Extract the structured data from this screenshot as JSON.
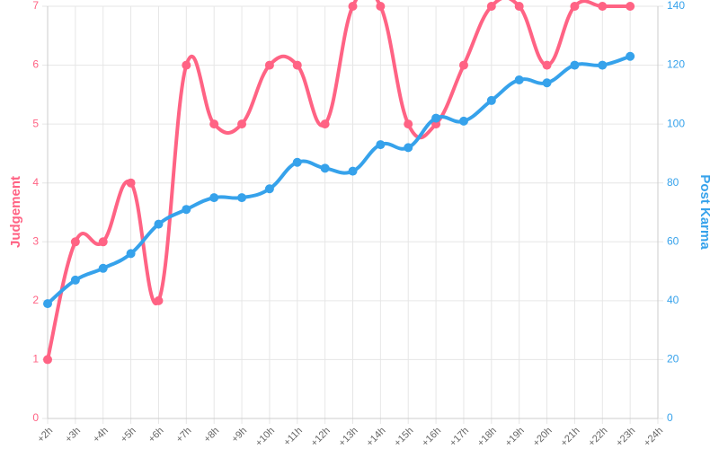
{
  "chart_data": {
    "type": "line",
    "ylabel": "Judgement",
    "y2label": "Post Karma",
    "categories": [
      "+2h",
      "+3h",
      "+4h",
      "+5h",
      "+6h",
      "+7h",
      "+8h",
      "+9h",
      "+10h",
      "+11h",
      "+12h",
      "+13h",
      "+14h",
      "+15h",
      "+16h",
      "+17h",
      "+18h",
      "+19h",
      "+20h",
      "+21h",
      "+22h",
      "+23h",
      "+24h"
    ],
    "series": [
      {
        "color": "#ff6384",
        "values": [
          1,
          3,
          3,
          4,
          2,
          6,
          5,
          5,
          6,
          6,
          5,
          7,
          7,
          5,
          5,
          6,
          7,
          7,
          6,
          7,
          7,
          7,
          null
        ]
      },
      {
        "color": "#36a2eb",
        "axis": "y2",
        "values": [
          39,
          47,
          51,
          56,
          66,
          71,
          75,
          75,
          78,
          87,
          85,
          84,
          93,
          92,
          102,
          101,
          108,
          115,
          114,
          120,
          120,
          123,
          null
        ]
      }
    ],
    "ylim": [
      0,
      7
    ],
    "yticks": [
      0,
      1,
      2,
      3,
      4,
      5,
      6,
      7
    ],
    "y2lim": [
      0,
      140
    ],
    "y2ticks": [
      0,
      20,
      40,
      60,
      80,
      100,
      120,
      140
    ],
    "grid": true
  }
}
